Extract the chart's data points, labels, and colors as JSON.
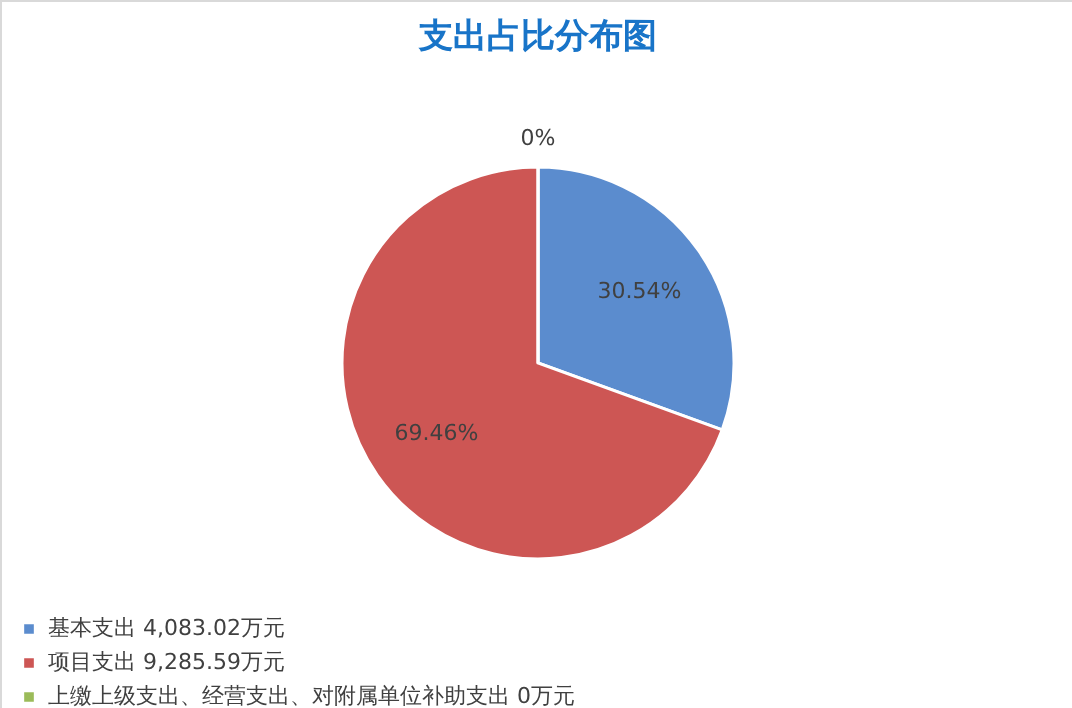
{
  "chart_data": {
    "type": "pie",
    "title": "支出占比分布图",
    "categories": [
      "基本支出 4,083.02万元",
      "项目支出 9,285.59万元",
      "上缴上级支出、经营支出、对附属单位补助支出 0万元"
    ],
    "values": [
      30.54,
      69.46,
      0
    ],
    "colors": [
      "#5b8cce",
      "#cd5654",
      "#9bbb59"
    ],
    "value_labels": [
      "30.54%",
      "69.46%",
      "0%"
    ],
    "legend": "bottom"
  }
}
